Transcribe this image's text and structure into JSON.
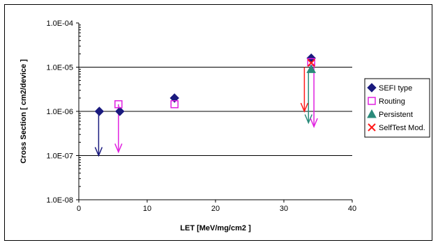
{
  "chart_data": {
    "type": "scatter",
    "title": "",
    "xlabel": "LET  [MeV/mg/cm2 ]",
    "ylabel": "Cross Section  [ cm2/device ]",
    "x_scale": "linear",
    "y_scale": "log",
    "xlim": [
      0,
      40
    ],
    "ylim": [
      1e-08,
      0.0001
    ],
    "x_ticks": [
      0,
      10,
      20,
      30,
      40
    ],
    "x_tick_labels": [
      "0",
      "10",
      "20",
      "30",
      "40"
    ],
    "y_ticks": [
      1e-08,
      1e-07,
      1e-06,
      1e-05,
      0.0001
    ],
    "y_tick_labels": [
      "1.0E-08",
      "1.0E-07",
      "1.0E-06",
      "1.0E-05",
      "1.0E-04"
    ],
    "grid": "horizontal major lines",
    "legend_position": "right",
    "series": [
      {
        "name": "SEFI type",
        "marker": "diamond",
        "color": "#1a1a7e",
        "points": [
          {
            "x": 3,
            "y": 1e-06
          },
          {
            "x": 6,
            "y": 1e-06
          },
          {
            "x": 14,
            "y": 2e-06
          },
          {
            "x": 34,
            "y": 1.6e-05
          }
        ]
      },
      {
        "name": "Routing",
        "marker": "open-square",
        "color": "#e020e0",
        "points": [
          {
            "x": 5.8,
            "y": 1.45e-06
          },
          {
            "x": 14,
            "y": 1.45e-06
          },
          {
            "x": 34,
            "y": 1.3e-05
          }
        ]
      },
      {
        "name": "Persistent",
        "marker": "triangle",
        "color": "#2a8a7a",
        "points": [
          {
            "x": 34,
            "y": 9e-06
          }
        ]
      },
      {
        "name": "SelfTest Mod.",
        "marker": "x",
        "color": "#ff1a1a",
        "points": [
          {
            "x": 34,
            "y": 1.25e-05
          }
        ]
      }
    ],
    "arrows": [
      {
        "x": 2.9,
        "y_from": 1e-06,
        "y_to": 1e-07,
        "color": "#1a1a7e"
      },
      {
        "x": 5.8,
        "y_from": 1.45e-06,
        "y_to": 1.2e-07,
        "color": "#e020e0"
      },
      {
        "x": 33,
        "y_from": 1e-05,
        "y_to": 1e-06,
        "color": "#ff1a1a"
      },
      {
        "x": 33.6,
        "y_from": 8e-06,
        "y_to": 5.5e-07,
        "color": "#2a8a7a"
      },
      {
        "x": 34.4,
        "y_from": 1.2e-05,
        "y_to": 4.5e-07,
        "color": "#e020e0"
      }
    ]
  }
}
